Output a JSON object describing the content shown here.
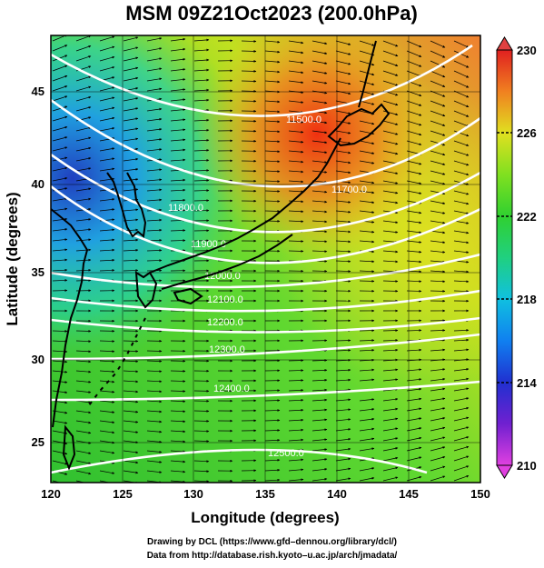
{
  "title": "MSM 09Z21Oct2023 (200.0hPa)",
  "axes": {
    "xlabel": "Longitude (degrees)",
    "ylabel": "Latitude  (degrees)",
    "xlim": [
      120,
      150
    ],
    "ylim": [
      22.5,
      47.9
    ],
    "xticks": [
      "120",
      "125",
      "130",
      "135",
      "140",
      "145",
      "150"
    ],
    "yticks": [
      "25",
      "30",
      "35",
      "40",
      "45"
    ]
  },
  "colorbar": {
    "range": [
      210,
      230
    ],
    "ticks": [
      "230",
      "226",
      "222",
      "218",
      "214",
      "210"
    ],
    "colors": [
      "#e040e0",
      "#7020d0",
      "#2030d0",
      "#1080f0",
      "#10c0e0",
      "#20d080",
      "#30d030",
      "#80e020",
      "#e0e020",
      "#f0a020",
      "#f05020",
      "#e02020"
    ]
  },
  "contours": {
    "labels": [
      "11500.0",
      "11700.0",
      "11800.0",
      "11900.0",
      "12000.0",
      "12100.0",
      "12200.0",
      "12300.0",
      "12400.0",
      "12500.0"
    ]
  },
  "credits": {
    "line1": "Drawing by DCL (https://www.gfd–dennou.org/library/dcl/)",
    "line2": "Data from http://database.rish.kyoto–u.ac.jp/arch/jmadata/"
  }
}
